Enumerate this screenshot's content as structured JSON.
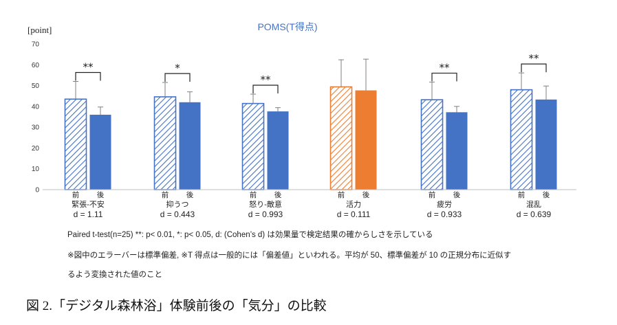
{
  "chart_data": {
    "type": "bar",
    "title": "POMS(T得点)",
    "ylabel": "[point]",
    "ylim": [
      0,
      70
    ],
    "yticks": [
      0,
      10,
      20,
      30,
      40,
      50,
      60,
      70
    ],
    "grid": false,
    "sublabels": [
      "前",
      "後"
    ],
    "groups": [
      {
        "name": "緊張-不安",
        "d": "d = 1.11",
        "sig": "**",
        "before": 43.5,
        "after": 36.0,
        "err_before": 52.0,
        "err_after": 39.7,
        "color": "#4472C4"
      },
      {
        "name": "抑うつ",
        "d": "d = 0.443",
        "sig": "*",
        "before": 44.6,
        "after": 42.0,
        "err_before": 51.5,
        "err_after": 47.0,
        "color": "#4472C4"
      },
      {
        "name": "怒り-敵意",
        "d": "d = 0.993",
        "sig": "**",
        "before": 41.4,
        "after": 37.6,
        "err_before": 45.9,
        "err_after": 39.4,
        "color": "#4472C4"
      },
      {
        "name": "活力",
        "d": "d = 0.111",
        "sig": "",
        "before": 49.4,
        "after": 47.7,
        "err_before": 62.4,
        "err_after": 62.7,
        "color": "#ED7D31"
      },
      {
        "name": "疲労",
        "d": "d = 0.933",
        "sig": "**",
        "before": 43.2,
        "after": 37.2,
        "err_before": 51.7,
        "err_after": 40.0,
        "color": "#4472C4"
      },
      {
        "name": "混乱",
        "d": "d = 0.639",
        "sig": "**",
        "before": 48.0,
        "after": 43.3,
        "err_before": 56.1,
        "err_after": 49.8,
        "color": "#4472C4"
      }
    ]
  },
  "notes": {
    "line1": "Paired t-test(n=25) **: p< 0.01, *: p< 0.05, d: (Cohen’s d)  は効果量で検定結果の確からしさを示している",
    "line2": "※図中のエラーバーは標準偏差, ※T 得点は一般的には「偏差値」といわれる。平均が 50、標準偏差が 10 の正規分布に近似す",
    "line3": "るよう変換された値のこと"
  },
  "caption": "図 2.「デジタル森林浴」体験前後の「気分」の比較"
}
